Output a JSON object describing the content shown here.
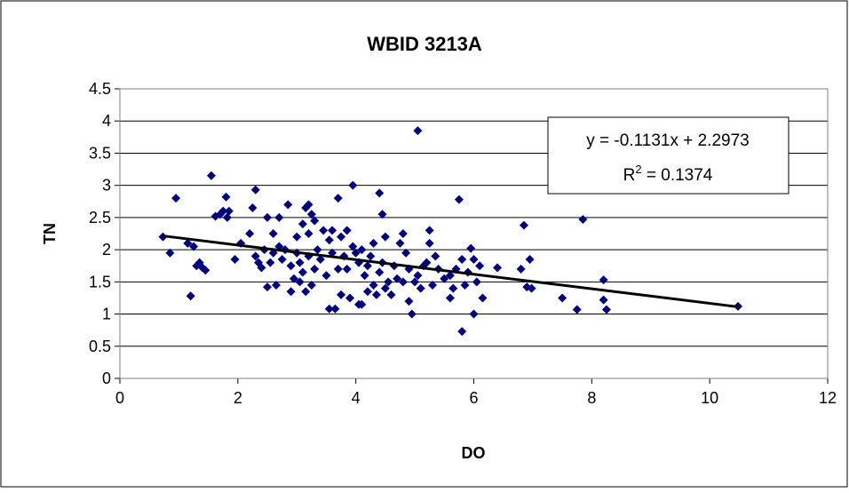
{
  "chart_data": {
    "type": "scatter",
    "title": "WBID 3213A",
    "x_label": "DO",
    "y_label": "TN",
    "xlim": [
      0,
      12
    ],
    "xticks": [
      0,
      2,
      4,
      6,
      8,
      10,
      12
    ],
    "ylim": [
      0,
      4.5
    ],
    "yticks": [
      0,
      0.5,
      1,
      1.5,
      2,
      2.5,
      3,
      3.5,
      4,
      4.5
    ],
    "grid": true,
    "color": "#000080",
    "x": [
      0.73,
      0.85,
      0.95,
      1.15,
      1.2,
      1.25,
      1.3,
      1.35,
      1.4,
      1.45,
      1.55,
      1.62,
      1.7,
      1.75,
      1.8,
      1.82,
      1.85,
      1.95,
      2.05,
      2.2,
      2.25,
      2.3,
      2.3,
      2.35,
      2.4,
      2.45,
      2.5,
      2.5,
      2.55,
      2.6,
      2.6,
      2.65,
      2.7,
      2.7,
      2.75,
      2.8,
      2.85,
      2.9,
      2.9,
      2.95,
      3.0,
      3.0,
      3.05,
      3.05,
      3.1,
      3.1,
      3.15,
      3.15,
      3.2,
      3.2,
      3.2,
      3.25,
      3.25,
      3.3,
      3.3,
      3.35,
      3.4,
      3.45,
      3.5,
      3.55,
      3.55,
      3.6,
      3.6,
      3.65,
      3.7,
      3.7,
      3.75,
      3.75,
      3.8,
      3.85,
      3.85,
      3.9,
      3.95,
      3.95,
      4.0,
      4.05,
      4.05,
      4.1,
      4.1,
      4.15,
      4.2,
      4.2,
      4.25,
      4.3,
      4.3,
      4.35,
      4.4,
      4.4,
      4.45,
      4.45,
      4.5,
      4.5,
      4.55,
      4.6,
      4.65,
      4.7,
      4.75,
      4.8,
      4.8,
      4.85,
      4.9,
      4.9,
      4.95,
      5.0,
      5.05,
      5.05,
      5.1,
      5.15,
      5.2,
      5.25,
      5.25,
      5.3,
      5.35,
      5.4,
      5.5,
      5.6,
      5.6,
      5.65,
      5.7,
      5.75,
      5.8,
      5.8,
      5.85,
      5.9,
      5.95,
      6.0,
      6.0,
      6.05,
      6.1,
      6.15,
      6.4,
      6.8,
      6.85,
      6.9,
      6.95,
      6.98,
      7.5,
      7.75,
      7.85,
      8.2,
      8.2,
      8.25,
      10.48
    ],
    "values": [
      2.2,
      1.95,
      2.8,
      2.1,
      1.28,
      2.05,
      1.75,
      1.8,
      1.72,
      1.68,
      3.15,
      2.52,
      2.55,
      2.6,
      2.82,
      2.5,
      2.6,
      1.85,
      2.1,
      2.25,
      2.65,
      2.93,
      1.9,
      1.8,
      1.72,
      2.0,
      1.42,
      2.5,
      1.8,
      1.95,
      2.25,
      1.45,
      2.5,
      2.05,
      1.85,
      2.0,
      2.7,
      1.35,
      1.75,
      1.55,
      1.95,
      2.2,
      1.8,
      1.5,
      1.65,
      2.4,
      1.35,
      2.65,
      2.7,
      1.9,
      2.25,
      1.45,
      2.55,
      1.7,
      2.45,
      2.0,
      1.85,
      2.3,
      1.6,
      1.08,
      2.15,
      2.3,
      1.95,
      1.08,
      2.8,
      1.7,
      1.3,
      2.2,
      1.9,
      2.3,
      1.7,
      1.25,
      3.0,
      2.05,
      1.95,
      1.8,
      1.15,
      1.15,
      2.0,
      1.6,
      1.35,
      1.75,
      1.9,
      2.1,
      1.45,
      1.3,
      2.88,
      1.65,
      2.55,
      1.8,
      1.4,
      2.2,
      1.5,
      1.3,
      1.75,
      1.55,
      2.1,
      2.25,
      1.5,
      1.95,
      1.2,
      1.7,
      1.0,
      1.5,
      3.85,
      1.6,
      1.4,
      1.75,
      1.8,
      2.3,
      2.1,
      1.45,
      1.9,
      1.7,
      1.55,
      1.6,
      1.25,
      1.4,
      1.7,
      2.78,
      1.85,
      0.73,
      1.45,
      1.65,
      2.02,
      1.0,
      1.85,
      1.5,
      1.75,
      1.25,
      1.72,
      1.7,
      2.38,
      1.42,
      1.85,
      1.4,
      1.25,
      1.07,
      2.47,
      1.53,
      1.22,
      1.07,
      1.12
    ],
    "trendline": {
      "x": [
        0.73,
        10.48
      ],
      "slope": -0.1131,
      "intercept": 2.2973,
      "equation": "y = -0.1131x + 2.2973",
      "r2_base": "R",
      "r2_exp": "2",
      "r2_text": " = 0.1374"
    }
  }
}
